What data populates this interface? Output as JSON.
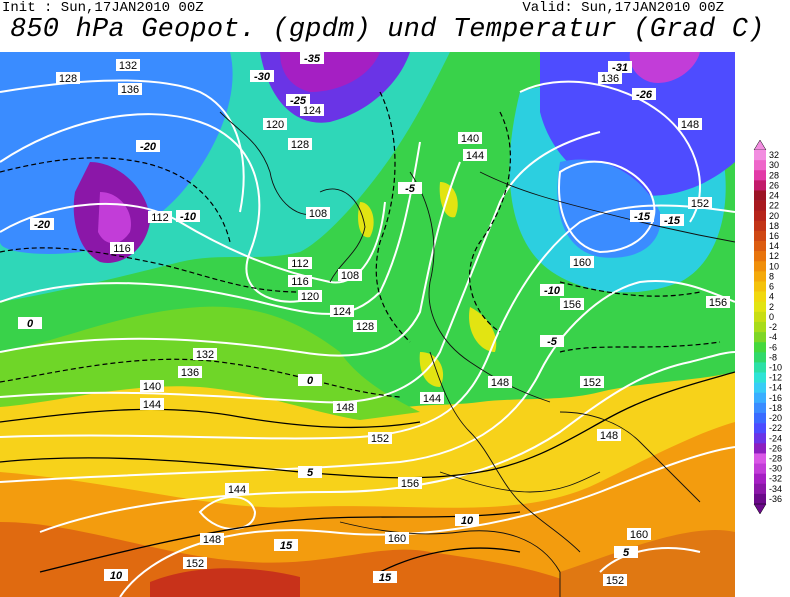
{
  "header": {
    "init": "Init : Sun,17JAN2010 00Z",
    "valid": "Valid: Sun,17JAN2010 00Z",
    "title": "850 hPa Geopot. (gpdm) und Temperatur (Grad C)"
  },
  "legend": {
    "colors": [
      "#6b0a8a",
      "#8b17a8",
      "#a51fc3",
      "#c23dd8",
      "#d957e6",
      "#8c1fbf",
      "#6a34e6",
      "#4b4cff",
      "#3a6bff",
      "#3b8cff",
      "#3aaeff",
      "#38cdf6",
      "#2ee3d6",
      "#2ce0a6",
      "#31d96a",
      "#45d83d",
      "#7ed626",
      "#a8dc1a",
      "#c8de14",
      "#e2e412",
      "#f1d80e",
      "#f4c20b",
      "#f4a90a",
      "#f08f0a",
      "#e8740c",
      "#dc5c10",
      "#cf4713",
      "#c23417",
      "#b6241b",
      "#a8191f",
      "#9c1425",
      "#c21b6a",
      "#e23aa7",
      "#ee66c9",
      "#f28de0"
    ],
    "labels": [
      "32",
      "30",
      "28",
      "26",
      "24",
      "22",
      "20",
      "18",
      "16",
      "14",
      "12",
      "10",
      "8",
      "6",
      "4",
      "2",
      "0",
      "-2",
      "-4",
      "-6",
      "-8",
      "-10",
      "-12",
      "-14",
      "-16",
      "-18",
      "-20",
      "-22",
      "-24",
      "-26",
      "-28",
      "-30",
      "-32",
      "-34",
      "-36"
    ]
  },
  "geopotential_labels": [
    "128",
    "132",
    "136",
    "120",
    "124",
    "128",
    "112",
    "116",
    "108",
    "108",
    "112",
    "116",
    "120",
    "124",
    "128",
    "132",
    "136",
    "140",
    "144",
    "148",
    "152",
    "156",
    "160",
    "148",
    "144",
    "152",
    "140",
    "136",
    "148",
    "144",
    "152",
    "160",
    "156",
    "148",
    "152",
    "156",
    "160",
    "152",
    "148",
    "144"
  ],
  "temperature_labels": [
    "-30",
    "-25",
    "-20",
    "-15",
    "-10",
    "-5",
    "0",
    "5",
    "10",
    "15",
    "-35",
    "-31",
    "-26",
    "-20",
    "-15",
    "-10",
    "-5",
    "0",
    "5",
    "10",
    "15"
  ]
}
